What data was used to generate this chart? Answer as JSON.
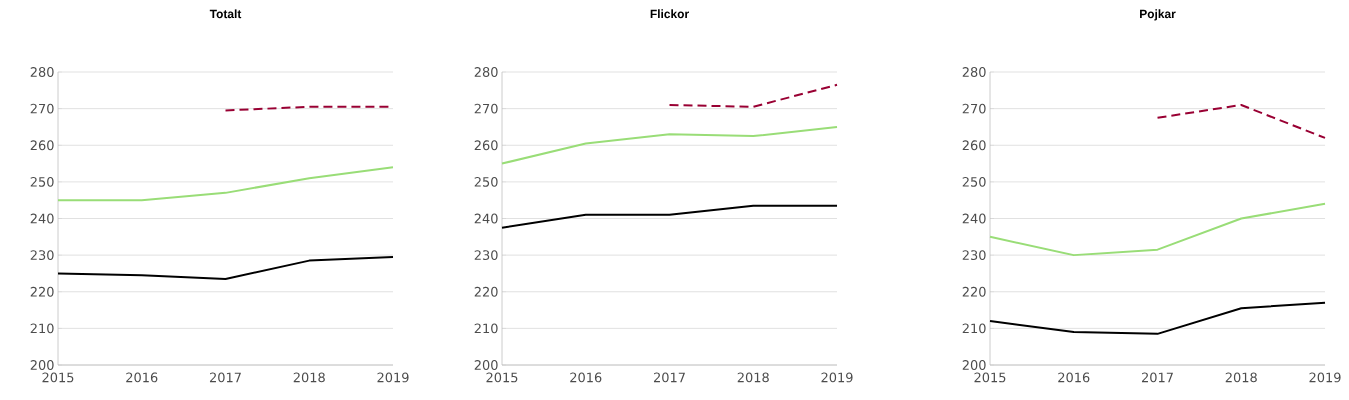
{
  "chart_data": [
    {
      "type": "line",
      "title": "Totalt",
      "x": [
        2015,
        2016,
        2017,
        2018,
        2019
      ],
      "xlim": [
        2015,
        2019
      ],
      "xticks": [
        2015,
        2016,
        2017,
        2018,
        2019
      ],
      "ylim": [
        200,
        280
      ],
      "yticks": [
        200,
        210,
        220,
        230,
        240,
        250,
        260,
        270,
        280
      ],
      "grid": "y",
      "series": [
        {
          "color": "#000000",
          "values": [
            225,
            224.5,
            223.5,
            228.5,
            229.5
          ]
        },
        {
          "color": "#99dd77",
          "values": [
            245,
            245,
            247,
            251,
            254
          ]
        },
        {
          "color": "#990033",
          "line_style": "dashed",
          "values": [
            null,
            null,
            269.5,
            270.5,
            270.5
          ]
        }
      ]
    },
    {
      "type": "line",
      "title": "Flickor",
      "x": [
        2015,
        2016,
        2017,
        2018,
        2019
      ],
      "xlim": [
        2015,
        2019
      ],
      "xticks": [
        2015,
        2016,
        2017,
        2018,
        2019
      ],
      "ylim": [
        200,
        280
      ],
      "yticks": [
        200,
        210,
        220,
        230,
        240,
        250,
        260,
        270,
        280
      ],
      "grid": "y",
      "series": [
        {
          "color": "#000000",
          "values": [
            237.5,
            241,
            241,
            243.5,
            243.5
          ]
        },
        {
          "color": "#99dd77",
          "values": [
            255,
            260.5,
            263,
            262.5,
            265
          ]
        },
        {
          "color": "#990033",
          "line_style": "dashed",
          "values": [
            null,
            null,
            271,
            270.5,
            276.5
          ]
        }
      ]
    },
    {
      "type": "line",
      "title": "Pojkar",
      "x": [
        2015,
        2016,
        2017,
        2018,
        2019
      ],
      "xlim": [
        2015,
        2019
      ],
      "xticks": [
        2015,
        2016,
        2017,
        2018,
        2019
      ],
      "ylim": [
        200,
        280
      ],
      "yticks": [
        200,
        210,
        220,
        230,
        240,
        250,
        260,
        270,
        280
      ],
      "grid": "y",
      "series": [
        {
          "color": "#000000",
          "values": [
            212,
            209,
            208.5,
            215.5,
            217
          ]
        },
        {
          "color": "#99dd77",
          "values": [
            235,
            230,
            231.5,
            240,
            244
          ]
        },
        {
          "color": "#990033",
          "line_style": "dashed",
          "values": [
            null,
            null,
            267.5,
            271,
            262
          ]
        }
      ]
    }
  ]
}
